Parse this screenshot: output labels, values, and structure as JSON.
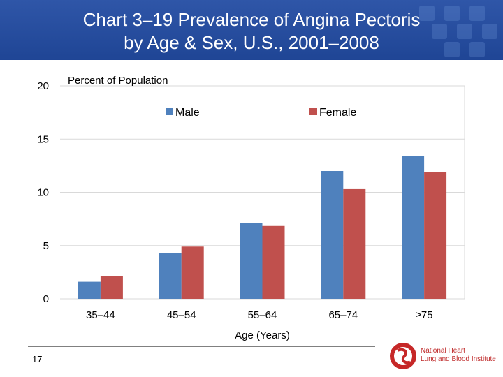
{
  "header": {
    "title_line1": "Chart 3–19 Prevalence of Angina Pectoris",
    "title_line2": "by Age & Sex, U.S., 2001–2008"
  },
  "footer": {
    "page_number": "17",
    "logo_line1": "National Heart",
    "logo_line2": "Lung and Blood Institute"
  },
  "colors": {
    "header_bg": "#2a4fa0",
    "male": "#4f81bd",
    "female": "#c0504d"
  },
  "chart_data": {
    "type": "bar",
    "title": "",
    "ylabel": "Percent of Population",
    "xlabel": "Age (Years)",
    "categories": [
      "35–44",
      "45–54",
      "55–64",
      "65–74",
      "≥75"
    ],
    "series": [
      {
        "name": "Male",
        "color": "#4f81bd",
        "values": [
          1.6,
          4.3,
          7.1,
          12.0,
          13.4
        ]
      },
      {
        "name": "Female",
        "color": "#c0504d",
        "values": [
          2.1,
          4.9,
          6.9,
          10.3,
          11.9
        ]
      }
    ],
    "ylim": [
      0,
      20
    ],
    "yticks": [
      0,
      5,
      10,
      15,
      20
    ],
    "grid": true,
    "legend_position": "top-center"
  }
}
